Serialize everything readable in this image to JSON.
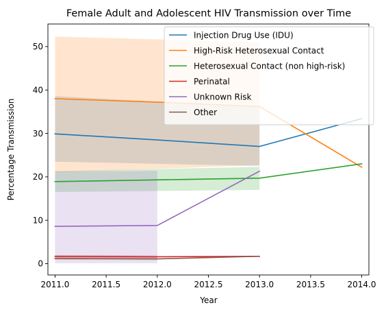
{
  "chart_data": {
    "type": "line",
    "title": "Female Adult and Adolescent HIV Transmission over Time",
    "xlabel": "Year",
    "ylabel": "Percentage Transmission",
    "xlim": [
      2010.93,
      2014.07
    ],
    "ylim": [
      -2.6,
      55.2
    ],
    "xticks": [
      2011.0,
      2011.5,
      2012.0,
      2012.5,
      2013.0,
      2013.5,
      2014.0
    ],
    "xtick_labels": [
      "2011.0",
      "2011.5",
      "2012.0",
      "2012.5",
      "2013.0",
      "2013.5",
      "2014.0"
    ],
    "yticks": [
      0,
      10,
      20,
      30,
      40,
      50
    ],
    "ytick_labels": [
      "0",
      "10",
      "20",
      "30",
      "40",
      "50"
    ],
    "grid": false,
    "legend_position": "top-right",
    "series": [
      {
        "name": "Injection Drug Use (IDU)",
        "color": "#1f77b4",
        "x": [
          2011,
          2012,
          2013,
          2014
        ],
        "values": [
          29.9,
          28.5,
          27.0,
          33.4
        ],
        "band": {
          "x": [
            2011,
            2013
          ],
          "lower": [
            23.5,
            22.5
          ],
          "upper": [
            38.6,
            36.0
          ]
        }
      },
      {
        "name": "High-Risk Heterosexual Contact",
        "color": "#ff7f0e",
        "x": [
          2011,
          2012,
          2013,
          2014
        ],
        "values": [
          38.0,
          37.2,
          36.2,
          22.2
        ],
        "band": {
          "x": [
            2011,
            2013
          ],
          "lower": [
            21.0,
            22.7
          ],
          "upper": [
            52.3,
            51.0
          ]
        }
      },
      {
        "name": "Heterosexual Contact (non high-risk)",
        "color": "#2ca02c",
        "x": [
          2011,
          2012,
          2013,
          2014
        ],
        "values": [
          18.9,
          19.3,
          19.7,
          23.0
        ],
        "band": {
          "x": [
            2011,
            2013
          ],
          "lower": [
            16.5,
            17.0
          ],
          "upper": [
            21.3,
            22.3
          ]
        }
      },
      {
        "name": "Perinatal",
        "color": "#d62728",
        "x": [
          2011,
          2012,
          2013
        ],
        "values": [
          1.7,
          1.6,
          1.7
        ],
        "band": {
          "x": [
            2011,
            2012
          ],
          "lower": [
            1.4,
            1.3
          ],
          "upper": [
            2.0,
            1.9
          ]
        }
      },
      {
        "name": "Unknown Risk",
        "color": "#9467bd",
        "x": [
          2011,
          2012,
          2013
        ],
        "values": [
          8.6,
          8.8,
          21.3
        ],
        "band": {
          "x": [
            2011,
            2012
          ],
          "lower": [
            0.1,
            0.1
          ],
          "upper": [
            21.2,
            21.4
          ]
        }
      },
      {
        "name": "Other",
        "color": "#8c564b",
        "x": [
          2011,
          2012,
          2013
        ],
        "values": [
          1.2,
          1.1,
          1.7
        ],
        "band": {
          "x": [
            2011,
            2012
          ],
          "lower": [
            0.9,
            0.8
          ],
          "upper": [
            1.6,
            1.5
          ]
        }
      }
    ]
  }
}
